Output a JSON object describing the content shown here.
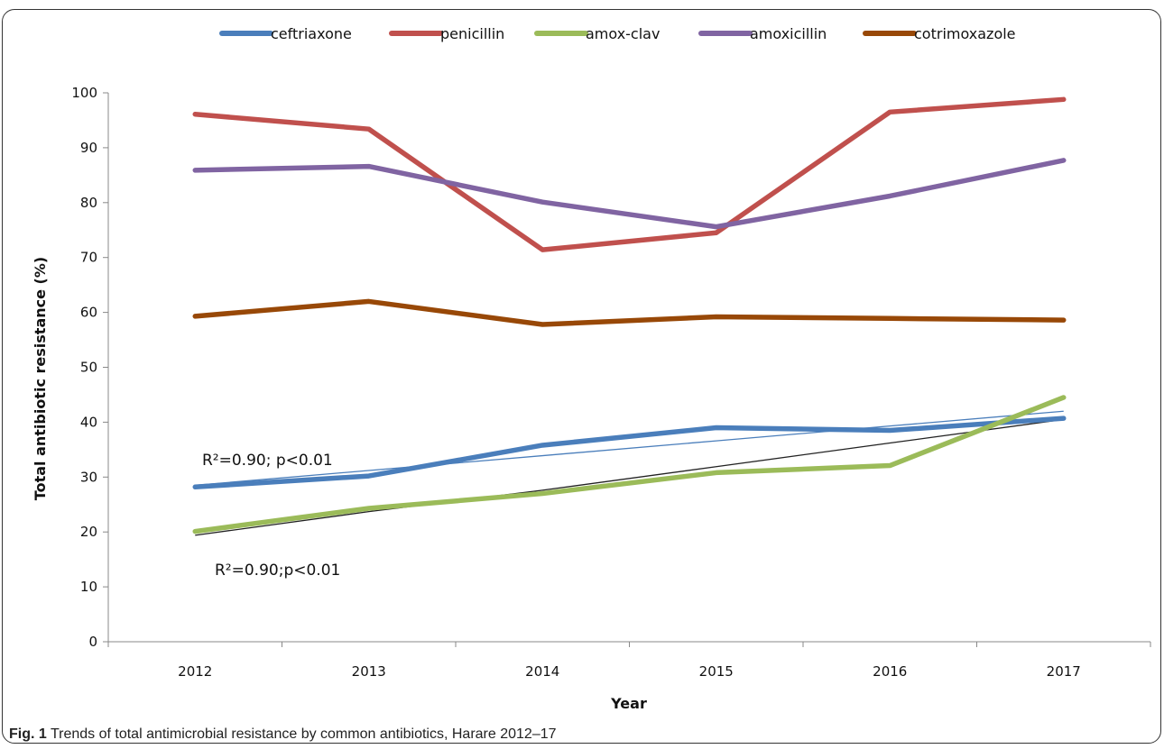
{
  "chart_data": {
    "type": "line",
    "categories": [
      "2012",
      "2013",
      "2014",
      "2015",
      "2016",
      "2017"
    ],
    "series": [
      {
        "name": "ceftriaxone",
        "color": "#4a7ebb",
        "values": [
          28.2,
          30.2,
          35.8,
          39.0,
          38.5,
          40.7
        ]
      },
      {
        "name": "penicillin",
        "color": "#c0504d",
        "values": [
          96.1,
          93.4,
          71.4,
          74.5,
          96.5,
          98.8
        ]
      },
      {
        "name": "amox-clav",
        "color": "#9bbb59",
        "values": [
          20.1,
          24.3,
          27.0,
          30.8,
          32.1,
          44.5
        ]
      },
      {
        "name": "amoxicillin",
        "color": "#8064a2",
        "values": [
          85.9,
          86.6,
          80.1,
          75.6,
          81.2,
          87.7
        ]
      },
      {
        "name": "cotrimoxazole",
        "color": "#984807",
        "values": [
          59.3,
          62.0,
          57.8,
          59.2,
          58.9,
          58.6
        ]
      }
    ],
    "trendlines": [
      {
        "series": "ceftriaxone",
        "color": "#4a7ebb",
        "values": [
          28.5,
          31.2,
          33.9,
          36.6,
          39.3,
          42.0
        ]
      },
      {
        "series": "amox-clav",
        "color": "#222222",
        "values": [
          19.4,
          23.7,
          27.6,
          31.9,
          36.2,
          40.5
        ]
      }
    ],
    "annotations": [
      {
        "id": "ceftriaxone",
        "text": "R²=0.90; p<0.01"
      },
      {
        "id": "amox-clav",
        "text": "R²=0.90;p<0.01"
      }
    ],
    "xlabel": "Year",
    "ylabel": "Total antibiotic resistance (%)",
    "ylim": [
      0,
      100
    ],
    "yticks": [
      0,
      10,
      20,
      30,
      40,
      50,
      60,
      70,
      80,
      90,
      100
    ],
    "grid": false,
    "legend_position": "top"
  },
  "caption": {
    "label": "Fig. 1",
    "text": " Trends of total antimicrobial resistance by common antibiotics, Harare 2012–17"
  }
}
